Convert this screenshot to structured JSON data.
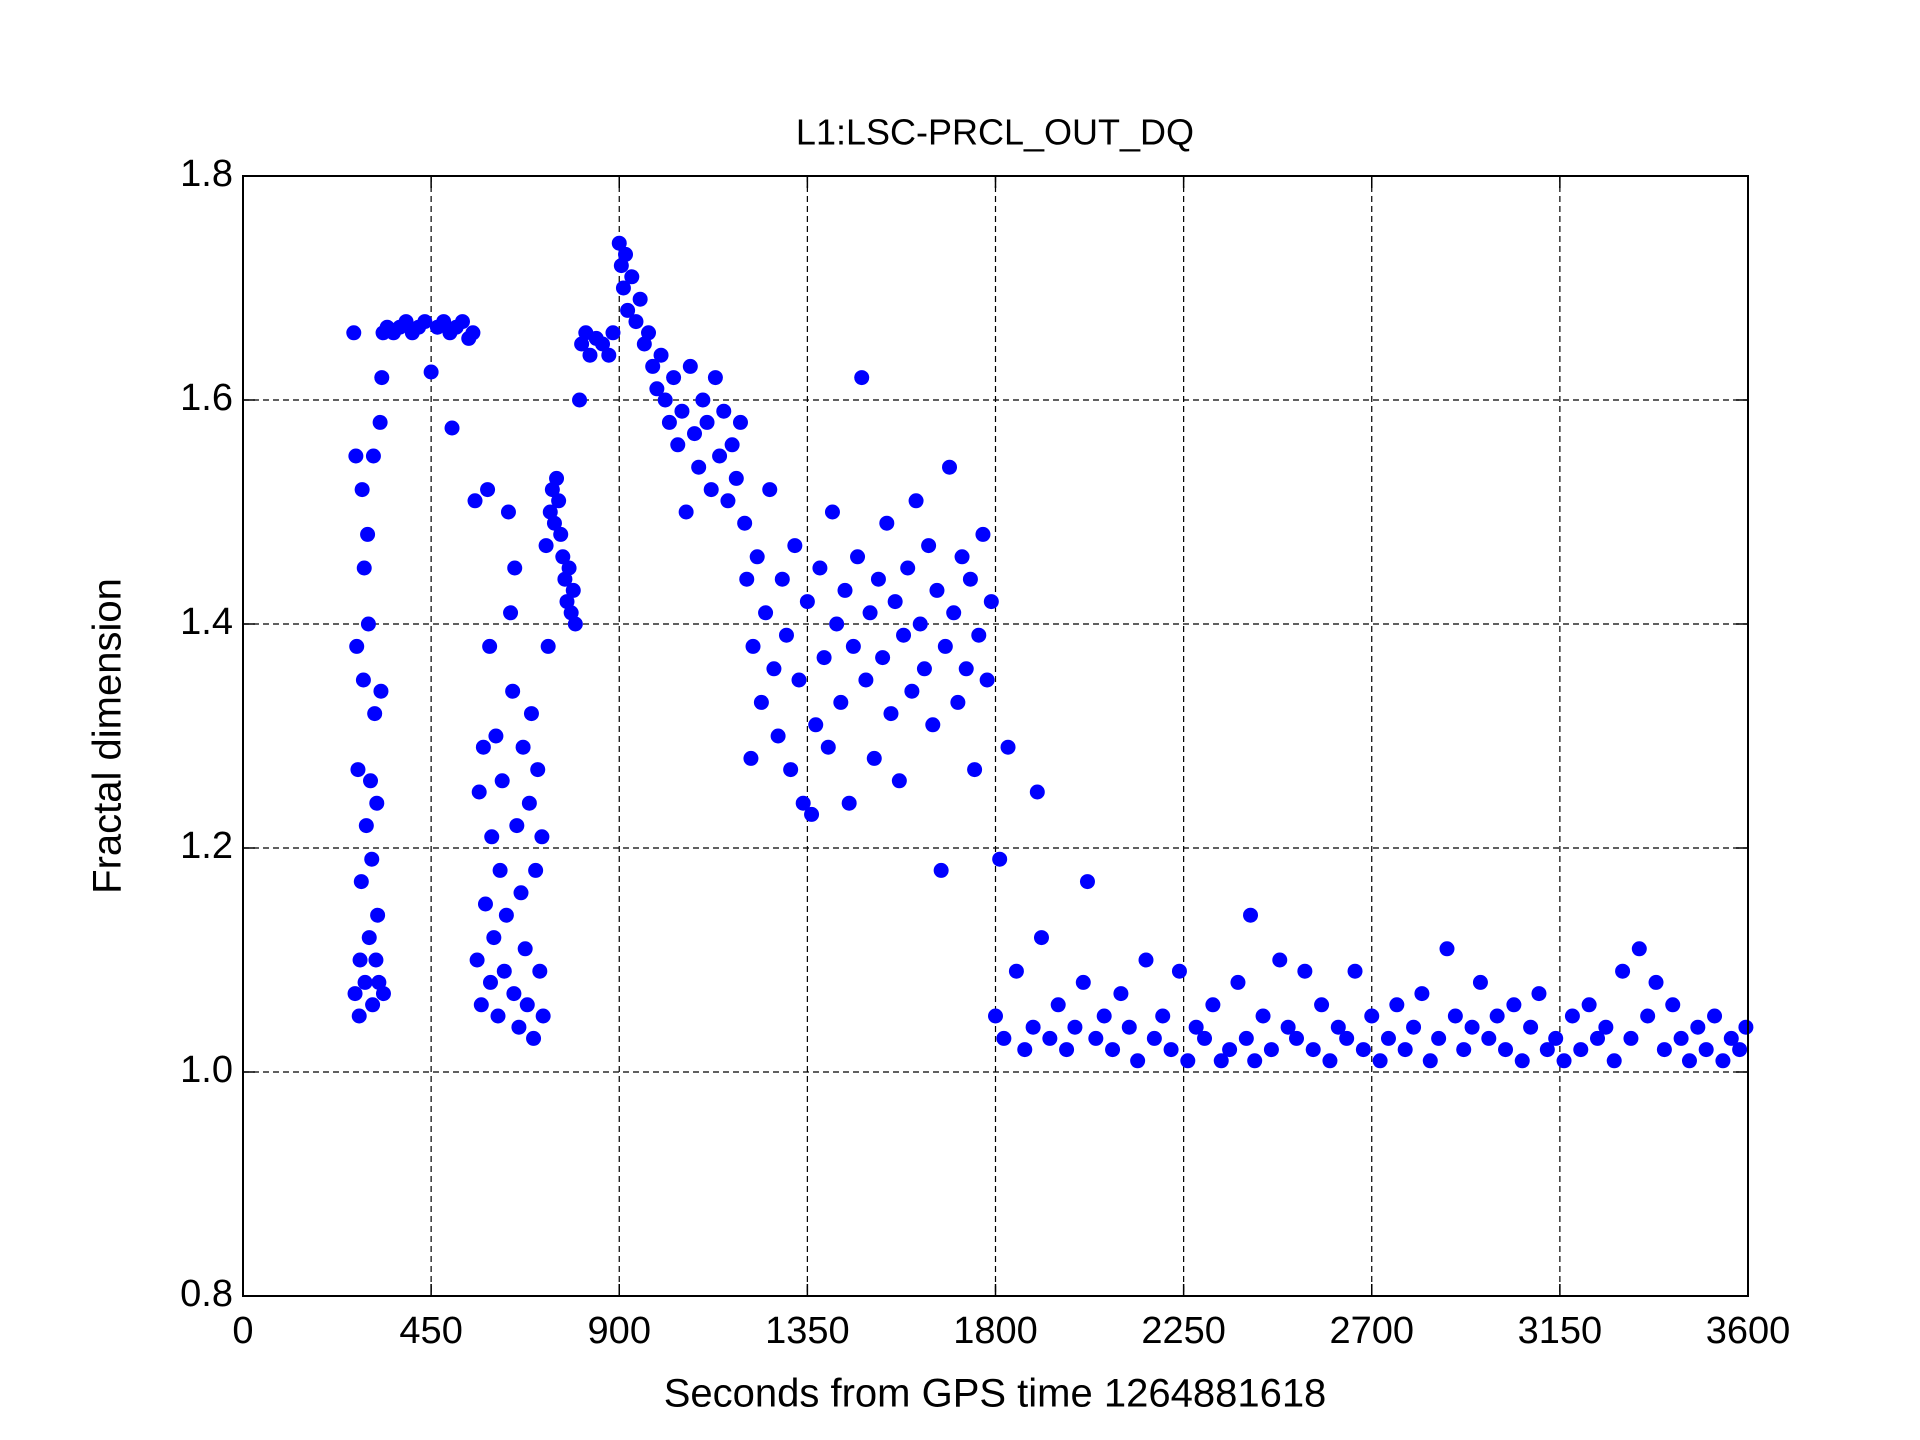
{
  "chart_data": {
    "type": "scatter",
    "title": "L1:LSC-PRCL_OUT_DQ",
    "x_label": "Seconds from GPS time 1264881618",
    "y_label": "Fractal dimension",
    "color": "#0000ff",
    "grid": true,
    "xlim": [
      0,
      3600
    ],
    "xticks": [
      0,
      450,
      900,
      1350,
      1800,
      2250,
      2700,
      3150,
      3600
    ],
    "ylim": [
      0.8,
      1.8
    ],
    "yticks": [
      0.8,
      {
        "value": 1,
        "label": "1.0"
      },
      1.2,
      1.4,
      1.6,
      1.8
    ],
    "x": [
      265,
      268,
      270,
      272,
      275,
      278,
      280,
      283,
      285,
      288,
      290,
      292,
      295,
      298,
      300,
      302,
      305,
      308,
      310,
      312,
      315,
      318,
      320,
      322,
      325,
      328,
      330,
      332,
      335,
      336,
      345,
      360,
      375,
      390,
      405,
      420,
      435,
      450,
      465,
      480,
      495,
      500,
      510,
      525,
      540,
      550,
      555,
      560,
      565,
      570,
      575,
      580,
      585,
      590,
      592,
      595,
      600,
      605,
      610,
      615,
      620,
      625,
      630,
      635,
      640,
      645,
      648,
      650,
      655,
      660,
      665,
      670,
      675,
      680,
      685,
      690,
      695,
      700,
      705,
      710,
      715,
      718,
      725,
      730,
      735,
      740,
      745,
      750,
      755,
      760,
      765,
      770,
      775,
      780,
      785,
      790,
      795,
      805,
      810,
      820,
      830,
      845,
      860,
      875,
      885,
      900,
      905,
      910,
      915,
      920,
      930,
      940,
      950,
      960,
      970,
      980,
      990,
      1000,
      1010,
      1020,
      1030,
      1040,
      1050,
      1060,
      1070,
      1080,
      1090,
      1100,
      1110,
      1120,
      1130,
      1140,
      1150,
      1160,
      1170,
      1180,
      1190,
      1200,
      1205,
      1215,
      1220,
      1230,
      1240,
      1250,
      1260,
      1270,
      1280,
      1290,
      1300,
      1310,
      1320,
      1330,
      1340,
      1350,
      1360,
      1370,
      1380,
      1390,
      1400,
      1410,
      1420,
      1430,
      1440,
      1450,
      1460,
      1470,
      1480,
      1490,
      1500,
      1510,
      1520,
      1530,
      1540,
      1550,
      1560,
      1570,
      1580,
      1590,
      1600,
      1610,
      1620,
      1630,
      1640,
      1650,
      1660,
      1670,
      1680,
      1690,
      1700,
      1710,
      1720,
      1730,
      1740,
      1750,
      1760,
      1770,
      1780,
      1790,
      1800,
      1810,
      1820,
      1830,
      1850,
      1870,
      1890,
      1900,
      1910,
      1930,
      1950,
      1970,
      1990,
      2010,
      2020,
      2040,
      2060,
      2080,
      2100,
      2120,
      2140,
      2160,
      2180,
      2200,
      2220,
      2240,
      2260,
      2280,
      2300,
      2320,
      2340,
      2360,
      2380,
      2400,
      2410,
      2420,
      2440,
      2460,
      2480,
      2500,
      2520,
      2540,
      2560,
      2580,
      2600,
      2620,
      2640,
      2660,
      2680,
      2700,
      2720,
      2740,
      2760,
      2780,
      2800,
      2820,
      2840,
      2860,
      2880,
      2900,
      2920,
      2940,
      2960,
      2980,
      3000,
      3020,
      3040,
      3060,
      3080,
      3100,
      3120,
      3140,
      3160,
      3180,
      3200,
      3220,
      3240,
      3260,
      3280,
      3300,
      3320,
      3340,
      3360,
      3380,
      3400,
      3420,
      3440,
      3460,
      3480,
      3500,
      3520,
      3540,
      3560,
      3580,
      3595
    ],
    "values": [
      1.66,
      1.07,
      1.55,
      1.38,
      1.27,
      1.05,
      1.1,
      1.17,
      1.52,
      1.35,
      1.45,
      1.08,
      1.22,
      1.48,
      1.4,
      1.12,
      1.26,
      1.19,
      1.06,
      1.55,
      1.32,
      1.1,
      1.24,
      1.14,
      1.08,
      1.58,
      1.34,
      1.62,
      1.66,
      1.07,
      1.665,
      1.66,
      1.665,
      1.67,
      1.66,
      1.665,
      1.67,
      1.625,
      1.665,
      1.67,
      1.66,
      1.575,
      1.665,
      1.67,
      1.655,
      1.66,
      1.51,
      1.1,
      1.25,
      1.06,
      1.29,
      1.15,
      1.52,
      1.38,
      1.08,
      1.21,
      1.12,
      1.3,
      1.05,
      1.18,
      1.26,
      1.09,
      1.14,
      1.5,
      1.41,
      1.34,
      1.07,
      1.45,
      1.22,
      1.04,
      1.16,
      1.29,
      1.11,
      1.06,
      1.24,
      1.32,
      1.03,
      1.18,
      1.27,
      1.09,
      1.21,
      1.05,
      1.47,
      1.38,
      1.5,
      1.52,
      1.49,
      1.53,
      1.51,
      1.48,
      1.46,
      1.44,
      1.42,
      1.45,
      1.41,
      1.43,
      1.4,
      1.6,
      1.65,
      1.66,
      1.64,
      1.655,
      1.65,
      1.64,
      1.66,
      1.74,
      1.72,
      1.7,
      1.73,
      1.68,
      1.71,
      1.67,
      1.69,
      1.65,
      1.66,
      1.63,
      1.61,
      1.64,
      1.6,
      1.58,
      1.62,
      1.56,
      1.59,
      1.5,
      1.63,
      1.57,
      1.54,
      1.6,
      1.58,
      1.52,
      1.62,
      1.55,
      1.59,
      1.51,
      1.56,
      1.53,
      1.58,
      1.49,
      1.44,
      1.28,
      1.38,
      1.46,
      1.33,
      1.41,
      1.52,
      1.36,
      1.3,
      1.44,
      1.39,
      1.27,
      1.47,
      1.35,
      1.24,
      1.42,
      1.23,
      1.31,
      1.45,
      1.37,
      1.29,
      1.5,
      1.4,
      1.33,
      1.43,
      1.24,
      1.38,
      1.46,
      1.62,
      1.35,
      1.41,
      1.28,
      1.44,
      1.37,
      1.49,
      1.32,
      1.42,
      1.26,
      1.39,
      1.45,
      1.34,
      1.51,
      1.4,
      1.36,
      1.47,
      1.31,
      1.43,
      1.18,
      1.38,
      1.54,
      1.41,
      1.33,
      1.46,
      1.36,
      1.44,
      1.27,
      1.39,
      1.48,
      1.35,
      1.42,
      1.05,
      1.19,
      1.03,
      1.29,
      1.09,
      1.02,
      1.04,
      1.25,
      1.12,
      1.03,
      1.06,
      1.02,
      1.04,
      1.08,
      1.17,
      1.03,
      1.05,
      1.02,
      1.07,
      1.04,
      1.01,
      1.1,
      1.03,
      1.05,
      1.02,
      1.09,
      1.01,
      1.04,
      1.03,
      1.06,
      1.01,
      1.02,
      1.08,
      1.03,
      1.14,
      1.01,
      1.05,
      1.02,
      1.1,
      1.04,
      1.03,
      1.09,
      1.02,
      1.06,
      1.01,
      1.04,
      1.03,
      1.09,
      1.02,
      1.05,
      1.01,
      1.03,
      1.06,
      1.02,
      1.04,
      1.07,
      1.01,
      1.03,
      1.11,
      1.05,
      1.02,
      1.04,
      1.08,
      1.03,
      1.05,
      1.02,
      1.06,
      1.01,
      1.04,
      1.07,
      1.02,
      1.03,
      1.01,
      1.05,
      1.02,
      1.06,
      1.03,
      1.04,
      1.01,
      1.09,
      1.03,
      1.11,
      1.05,
      1.08,
      1.02,
      1.06,
      1.03,
      1.01,
      1.04,
      1.02,
      1.05,
      1.01,
      1.03,
      1.02,
      1.04
    ]
  }
}
